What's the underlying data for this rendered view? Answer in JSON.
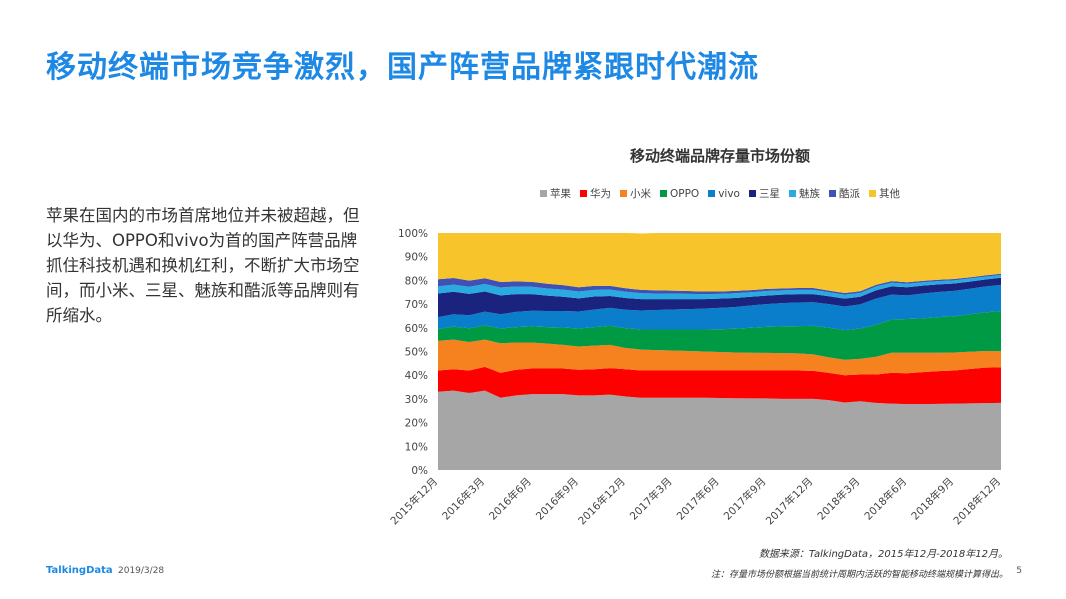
{
  "page": {
    "title": "移动终端市场竞争激烈，国产阵营品牌紧跟时代潮流",
    "description": "苹果在国内的市场首席地位并未被超越，但以华为、OPPO和vivo为首的国产阵营品牌抓住科技机遇和换机红利，不断扩大市场空间，而小米、三星、魅族和酷派等品牌则有所缩水。",
    "source": "数据来源：TalkingData，2015年12月-2018年12月。",
    "note": "注：存量市场份额根据当前统计周期内活跃的智能移动终端规模计算得出。",
    "brand": "TalkingData",
    "date": "2019/3/28",
    "page_number": "5"
  },
  "chart_data": {
    "type": "area",
    "stacked": true,
    "percent": true,
    "title": "移动终端品牌存量市场份额",
    "ylim": [
      0,
      100
    ],
    "yticks": [
      "0%",
      "10%",
      "20%",
      "30%",
      "40%",
      "50%",
      "60%",
      "70%",
      "80%",
      "90%",
      "100%"
    ],
    "x": [
      "2015年12月",
      "2016年1月",
      "2016年2月",
      "2016年3月",
      "2016年4月",
      "2016年5月",
      "2016年6月",
      "2016年7月",
      "2016年8月",
      "2016年9月",
      "2016年10月",
      "2016年11月",
      "2016年12月",
      "2017年1月",
      "2017年2月",
      "2017年3月",
      "2017年4月",
      "2017年5月",
      "2017年6月",
      "2017年7月",
      "2017年8月",
      "2017年9月",
      "2017年10月",
      "2017年11月",
      "2017年12月",
      "2018年1月",
      "2018年2月",
      "2018年3月",
      "2018年4月",
      "2018年5月",
      "2018年6月",
      "2018年7月",
      "2018年8月",
      "2018年9月",
      "2018年10月",
      "2018年11月",
      "2018年12月"
    ],
    "xticks": [
      "2015年12月",
      "2016年3月",
      "2016年6月",
      "2016年9月",
      "2016年12月",
      "2017年3月",
      "2017年6月",
      "2017年9月",
      "2017年12月",
      "2018年3月",
      "2018年6月",
      "2018年9月",
      "2018年12月"
    ],
    "legend_position": "top",
    "series": [
      {
        "name": "苹果",
        "color": "#a6a6a6",
        "values": [
          33,
          33.5,
          32.5,
          33.5,
          30.5,
          31.5,
          32,
          32,
          32,
          31.5,
          31.5,
          31.8,
          31,
          30.5,
          30.5,
          30.5,
          30.5,
          30.5,
          30.4,
          30.3,
          30.2,
          30.2,
          30,
          30,
          30,
          29.5,
          28.5,
          29,
          28.3,
          28,
          27.8,
          27.8,
          27.9,
          28,
          28.1,
          28.2,
          28.3
        ]
      },
      {
        "name": "华为",
        "color": "#ff0000",
        "values": [
          9,
          9,
          9.5,
          10,
          10.5,
          10.8,
          10.8,
          10.8,
          10.8,
          10.8,
          11,
          11.2,
          11.5,
          11.5,
          11.5,
          11.5,
          11.5,
          11.5,
          11.6,
          11.7,
          11.8,
          11.8,
          12,
          12,
          11.8,
          11.5,
          11.5,
          11.3,
          12,
          13,
          13,
          13.5,
          13.8,
          14,
          14.5,
          15,
          15
        ]
      },
      {
        "name": "小米",
        "color": "#f5821f",
        "values": [
          12.5,
          12.5,
          12,
          11.5,
          12.5,
          11.5,
          11,
          10.5,
          10,
          9.8,
          10,
          9.8,
          9,
          8.8,
          8.6,
          8.4,
          8.2,
          8,
          7.8,
          7.6,
          7.5,
          7.4,
          7.3,
          7.2,
          7,
          6.5,
          6.5,
          6.6,
          7.5,
          8.5,
          8.7,
          8.2,
          7.8,
          7.6,
          7.3,
          7,
          6.8
        ]
      },
      {
        "name": "OPPO",
        "color": "#009944",
        "values": [
          5,
          5.5,
          5.8,
          6,
          6.2,
          6.5,
          6.8,
          7,
          7.3,
          7.6,
          7.8,
          8,
          8.3,
          8.5,
          8.7,
          8.9,
          9.1,
          9.3,
          9.6,
          10,
          10.5,
          11,
          11.3,
          11.5,
          12,
          12.5,
          12.5,
          12.8,
          13.5,
          14,
          14.2,
          14.5,
          15,
          15.3,
          15.8,
          16.3,
          17
        ]
      },
      {
        "name": "vivo",
        "color": "#0b7ecb",
        "values": [
          5,
          5.2,
          5.5,
          5.8,
          6,
          6.4,
          6.6,
          6.8,
          7,
          7.2,
          7.4,
          7.6,
          7.8,
          8,
          8.2,
          8.4,
          8.6,
          8.8,
          9,
          9.2,
          9.4,
          9.6,
          9.8,
          10,
          10,
          10,
          10,
          10.2,
          11,
          10.5,
          10,
          10.5,
          10.6,
          10.7,
          10.8,
          10.9,
          11
        ]
      },
      {
        "name": "三星",
        "color": "#1a237e",
        "values": [
          10,
          9.5,
          9,
          8.5,
          8,
          7.5,
          7,
          6.5,
          6,
          5.5,
          5.5,
          5,
          5,
          4.8,
          4.6,
          4.4,
          4.2,
          4,
          3.9,
          3.8,
          3.7,
          3.6,
          3.6,
          3.5,
          3.4,
          3.3,
          3.3,
          3.2,
          3.5,
          3.5,
          3.4,
          3.3,
          3.2,
          3.1,
          3,
          3,
          3
        ]
      },
      {
        "name": "魅族",
        "color": "#29abe2",
        "values": [
          3,
          3,
          3,
          3.2,
          3.3,
          3.2,
          3.1,
          3,
          3,
          2.9,
          2.8,
          2.7,
          2.6,
          2.5,
          2.4,
          2.3,
          2.2,
          2.1,
          2,
          2,
          1.9,
          1.9,
          1.8,
          1.8,
          1.8,
          1.7,
          1.7,
          1.6,
          1.6,
          1.5,
          1.5,
          1.4,
          1.4,
          1.3,
          1.3,
          1.2,
          1.2
        ]
      },
      {
        "name": "酷派",
        "color": "#3f51b5",
        "values": [
          3,
          2.8,
          2.6,
          2.4,
          2.3,
          2.2,
          2.1,
          2,
          1.9,
          1.8,
          1.7,
          1.6,
          1.5,
          1.4,
          1.3,
          1.3,
          1.2,
          1.1,
          1,
          1,
          0.9,
          0.9,
          0.8,
          0.8,
          0.8,
          0.7,
          0.7,
          0.7,
          0.7,
          0.7,
          0.6,
          0.6,
          0.6,
          0.6,
          0.5,
          0.5,
          0.5
        ]
      },
      {
        "name": "其他",
        "color": "#f7c42c",
        "values": [
          19.5,
          19,
          20.1,
          19.1,
          20.7,
          20.4,
          20.6,
          21.4,
          22,
          22.9,
          22.3,
          22.3,
          23.3,
          23.8,
          24.2,
          24.3,
          24.5,
          24.7,
          24.7,
          24.4,
          24.1,
          23.6,
          23.4,
          23.2,
          23.2,
          24.3,
          25.3,
          24.6,
          21.9,
          20.3,
          20.8,
          20.4,
          19.7,
          19.4,
          18.7,
          17.9,
          17.2
        ]
      }
    ]
  }
}
